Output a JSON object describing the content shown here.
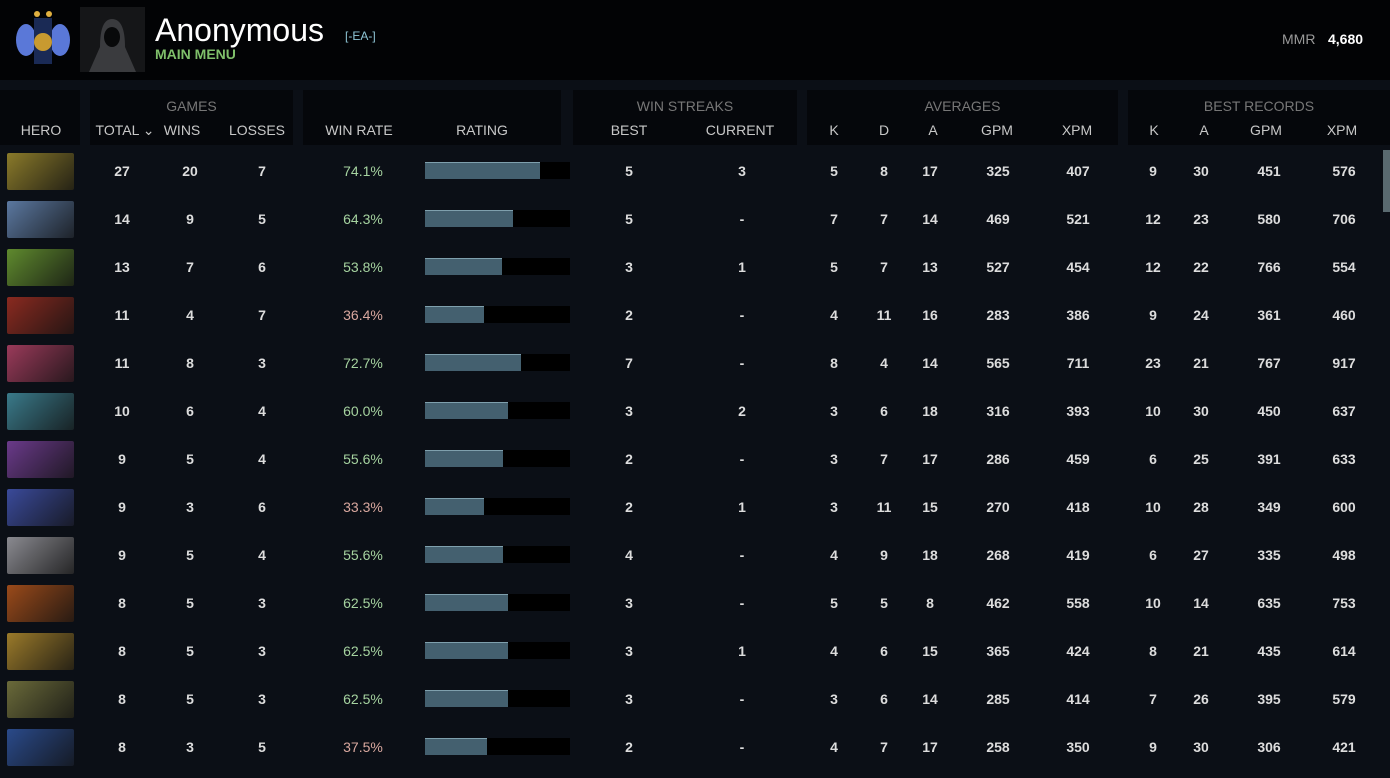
{
  "header": {
    "player_name": "Anonymous",
    "team_tag": "[-EA-]",
    "status": "MAIN MENU",
    "mmr_label": "MMR",
    "mmr_value": "4,680",
    "rank_icon": "rank-medal-icon",
    "avatar_icon": "hooded-figure-avatar"
  },
  "columns": {
    "hero": "HERO",
    "games": "GAMES",
    "total": "TOTAL ⌄",
    "wins": "WINS",
    "losses": "LOSSES",
    "win_rate": "WIN RATE",
    "rating": "RATING",
    "win_streaks": "WIN STREAKS",
    "best": "BEST",
    "current": "CURRENT",
    "averages": "AVERAGES",
    "k": "K",
    "d": "D",
    "a": "A",
    "gpm": "GPM",
    "xpm": "XPM",
    "best_records": "BEST RECORDS"
  },
  "colors": {
    "win_rate_high": "#a6d3a0",
    "win_rate_low": "#d9a89f",
    "rating_bar": "#44606f",
    "status": "#7fbf6a"
  },
  "rows": [
    {
      "hero_color": "#8a7a2a",
      "total": "27",
      "wins": "20",
      "losses": "7",
      "win_rate": "74.1%",
      "rating": 0.79,
      "best": "5",
      "current": "3",
      "k": "5",
      "d": "8",
      "a": "17",
      "gpm": "325",
      "xpm": "407",
      "bk": "9",
      "ba": "30",
      "bgpm": "451",
      "bxpm": "576"
    },
    {
      "hero_color": "#5b78a0",
      "total": "14",
      "wins": "9",
      "losses": "5",
      "win_rate": "64.3%",
      "rating": 0.61,
      "best": "5",
      "current": "-",
      "k": "7",
      "d": "7",
      "a": "14",
      "gpm": "469",
      "xpm": "521",
      "bk": "12",
      "ba": "23",
      "bgpm": "580",
      "bxpm": "706"
    },
    {
      "hero_color": "#5f8a2e",
      "total": "13",
      "wins": "7",
      "losses": "6",
      "win_rate": "53.8%",
      "rating": 0.53,
      "best": "3",
      "current": "1",
      "k": "5",
      "d": "7",
      "a": "13",
      "gpm": "527",
      "xpm": "454",
      "bk": "12",
      "ba": "22",
      "bgpm": "766",
      "bxpm": "554"
    },
    {
      "hero_color": "#8a2a20",
      "total": "11",
      "wins": "4",
      "losses": "7",
      "win_rate": "36.4%",
      "rating": 0.41,
      "best": "2",
      "current": "-",
      "k": "4",
      "d": "11",
      "a": "16",
      "gpm": "283",
      "xpm": "386",
      "bk": "9",
      "ba": "24",
      "bgpm": "361",
      "bxpm": "460"
    },
    {
      "hero_color": "#9a3a5a",
      "total": "11",
      "wins": "8",
      "losses": "3",
      "win_rate": "72.7%",
      "rating": 0.66,
      "best": "7",
      "current": "-",
      "k": "8",
      "d": "4",
      "a": "14",
      "gpm": "565",
      "xpm": "711",
      "bk": "23",
      "ba": "21",
      "bgpm": "767",
      "bxpm": "917"
    },
    {
      "hero_color": "#3a7a8a",
      "total": "10",
      "wins": "6",
      "losses": "4",
      "win_rate": "60.0%",
      "rating": 0.57,
      "best": "3",
      "current": "2",
      "k": "3",
      "d": "6",
      "a": "18",
      "gpm": "316",
      "xpm": "393",
      "bk": "10",
      "ba": "30",
      "bgpm": "450",
      "bxpm": "637"
    },
    {
      "hero_color": "#6a3a8a",
      "total": "9",
      "wins": "5",
      "losses": "4",
      "win_rate": "55.6%",
      "rating": 0.54,
      "best": "2",
      "current": "-",
      "k": "3",
      "d": "7",
      "a": "17",
      "gpm": "286",
      "xpm": "459",
      "bk": "6",
      "ba": "25",
      "bgpm": "391",
      "bxpm": "633"
    },
    {
      "hero_color": "#3a4a9a",
      "total": "9",
      "wins": "3",
      "losses": "6",
      "win_rate": "33.3%",
      "rating": 0.41,
      "best": "2",
      "current": "1",
      "k": "3",
      "d": "11",
      "a": "15",
      "gpm": "270",
      "xpm": "418",
      "bk": "10",
      "ba": "28",
      "bgpm": "349",
      "bxpm": "600"
    },
    {
      "hero_color": "#8a8a90",
      "total": "9",
      "wins": "5",
      "losses": "4",
      "win_rate": "55.6%",
      "rating": 0.54,
      "best": "4",
      "current": "-",
      "k": "4",
      "d": "9",
      "a": "18",
      "gpm": "268",
      "xpm": "419",
      "bk": "6",
      "ba": "27",
      "bgpm": "335",
      "bxpm": "498"
    },
    {
      "hero_color": "#9a4a1a",
      "total": "8",
      "wins": "5",
      "losses": "3",
      "win_rate": "62.5%",
      "rating": 0.57,
      "best": "3",
      "current": "-",
      "k": "5",
      "d": "5",
      "a": "8",
      "gpm": "462",
      "xpm": "558",
      "bk": "10",
      "ba": "14",
      "bgpm": "635",
      "bxpm": "753"
    },
    {
      "hero_color": "#9a7a2a",
      "total": "8",
      "wins": "5",
      "losses": "3",
      "win_rate": "62.5%",
      "rating": 0.57,
      "best": "3",
      "current": "1",
      "k": "4",
      "d": "6",
      "a": "15",
      "gpm": "365",
      "xpm": "424",
      "bk": "8",
      "ba": "21",
      "bgpm": "435",
      "bxpm": "614"
    },
    {
      "hero_color": "#6a6a3a",
      "total": "8",
      "wins": "5",
      "losses": "3",
      "win_rate": "62.5%",
      "rating": 0.57,
      "best": "3",
      "current": "-",
      "k": "3",
      "d": "6",
      "a": "14",
      "gpm": "285",
      "xpm": "414",
      "bk": "7",
      "ba": "26",
      "bgpm": "395",
      "bxpm": "579"
    },
    {
      "hero_color": "#2a4a8a",
      "total": "8",
      "wins": "3",
      "losses": "5",
      "win_rate": "37.5%",
      "rating": 0.43,
      "best": "2",
      "current": "-",
      "k": "4",
      "d": "7",
      "a": "17",
      "gpm": "258",
      "xpm": "350",
      "bk": "9",
      "ba": "30",
      "bgpm": "306",
      "bxpm": "421"
    }
  ]
}
